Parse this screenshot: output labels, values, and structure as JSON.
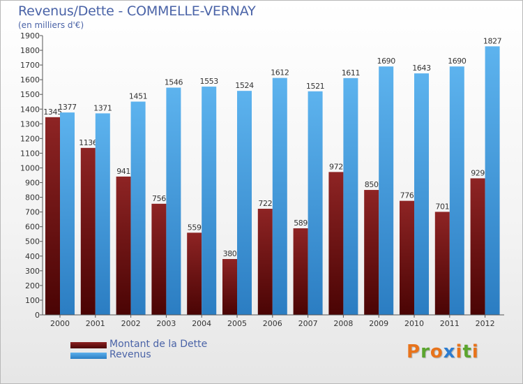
{
  "header": {
    "title": "Revenus/Dette - COMMELLE-VERNAY",
    "subtitle": "(en milliers d'€)"
  },
  "legend": [
    {
      "label": "Montant de la Dette",
      "color": "#6b1414"
    },
    {
      "label": "Revenus",
      "color": "#3d97de"
    }
  ],
  "logo": {
    "letters": [
      "P",
      "r",
      "o",
      "x",
      "i",
      "t",
      "i"
    ],
    "colors": [
      "#e8731b",
      "#5ba52e",
      "#e8731b",
      "#2b7cd0",
      "#e8731b",
      "#5ba52e",
      "#e8731b"
    ]
  },
  "chart_data": {
    "type": "bar",
    "title": "Revenus/Dette - COMMELLE-VERNAY",
    "subtitle": "(en milliers d'€)",
    "categories": [
      "2000",
      "2001",
      "2002",
      "2003",
      "2004",
      "2005",
      "2006",
      "2007",
      "2008",
      "2009",
      "2010",
      "2011",
      "2012"
    ],
    "series": [
      {
        "name": "Montant de la Dette",
        "color": "#6b1414",
        "values": [
          1345,
          1136,
          941,
          756,
          559,
          380,
          722,
          589,
          972,
          850,
          776,
          701,
          929
        ]
      },
      {
        "name": "Revenus",
        "color": "#3d97de",
        "values": [
          1377,
          1371,
          1451,
          1546,
          1553,
          1524,
          1612,
          1521,
          1611,
          1690,
          1643,
          1690,
          1827
        ]
      }
    ],
    "ylim": [
      0,
      1900
    ],
    "yticks": [
      0,
      100,
      200,
      300,
      400,
      500,
      600,
      700,
      800,
      900,
      1000,
      1100,
      1200,
      1300,
      1400,
      1500,
      1600,
      1700,
      1800,
      1900
    ],
    "grid": false,
    "legend_position": "bottom-left"
  }
}
